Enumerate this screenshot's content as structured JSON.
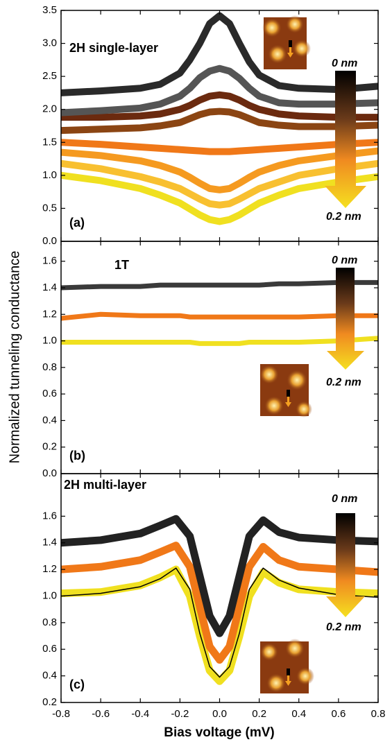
{
  "chart_data": [
    {
      "type": "line",
      "annotations": [
        "2H single-layer",
        "(a)",
        "0 nm",
        "0.2 nm"
      ],
      "x": [
        -0.8,
        -0.6,
        -0.4,
        -0.3,
        -0.2,
        -0.15,
        -0.1,
        -0.05,
        0,
        0.05,
        0.1,
        0.15,
        0.2,
        0.3,
        0.4,
        0.6,
        0.8
      ],
      "xlim": [
        -0.8,
        0.8
      ],
      "ylim": [
        0,
        3.5
      ],
      "yticks": [
        {
          "value": 0,
          "label": "0.0"
        },
        {
          "value": 0.5,
          "label": "0.5"
        },
        {
          "value": 1,
          "label": "1.0"
        },
        {
          "value": 1.5,
          "label": "1.5"
        },
        {
          "value": 2,
          "label": "2.0"
        },
        {
          "value": 2.5,
          "label": "2.5"
        },
        {
          "value": 3,
          "label": "3.0"
        },
        {
          "value": 3.5,
          "label": "3.5"
        }
      ],
      "series": [
        {
          "color": "#f0e020",
          "values": [
            1.0,
            0.92,
            0.8,
            0.7,
            0.58,
            0.49,
            0.4,
            0.33,
            0.3,
            0.33,
            0.4,
            0.49,
            0.58,
            0.7,
            0.8,
            0.9,
            0.98
          ]
        },
        {
          "color": "#f8c030",
          "values": [
            1.18,
            1.1,
            0.98,
            0.9,
            0.8,
            0.72,
            0.64,
            0.57,
            0.55,
            0.57,
            0.64,
            0.72,
            0.8,
            0.9,
            1.0,
            1.1,
            1.18
          ]
        },
        {
          "color": "#f59a20",
          "values": [
            1.35,
            1.3,
            1.22,
            1.15,
            1.05,
            0.97,
            0.88,
            0.8,
            0.78,
            0.8,
            0.88,
            0.97,
            1.05,
            1.15,
            1.22,
            1.3,
            1.37
          ]
        },
        {
          "color": "#f07818",
          "values": [
            1.5,
            1.47,
            1.43,
            1.41,
            1.39,
            1.38,
            1.37,
            1.36,
            1.36,
            1.36,
            1.37,
            1.38,
            1.39,
            1.41,
            1.43,
            1.47,
            1.5
          ]
        },
        {
          "color": "#8b4513",
          "values": [
            1.68,
            1.7,
            1.72,
            1.75,
            1.8,
            1.86,
            1.92,
            1.96,
            1.97,
            1.96,
            1.92,
            1.86,
            1.8,
            1.76,
            1.74,
            1.74,
            1.76
          ]
        },
        {
          "color": "#6b2a0f",
          "values": [
            1.88,
            1.88,
            1.9,
            1.93,
            2.0,
            2.06,
            2.14,
            2.2,
            2.22,
            2.2,
            2.14,
            2.06,
            2.0,
            1.93,
            1.9,
            1.88,
            1.88
          ]
        },
        {
          "color": "#555555",
          "values": [
            1.95,
            1.98,
            2.02,
            2.08,
            2.2,
            2.32,
            2.48,
            2.58,
            2.62,
            2.58,
            2.47,
            2.32,
            2.2,
            2.1,
            2.08,
            2.08,
            2.1
          ]
        },
        {
          "color": "#2a2a2a",
          "values": [
            2.25,
            2.28,
            2.32,
            2.38,
            2.55,
            2.75,
            3.0,
            3.3,
            3.42,
            3.3,
            3.0,
            2.72,
            2.52,
            2.36,
            2.32,
            2.3,
            2.35
          ]
        }
      ]
    },
    {
      "type": "line",
      "annotations": [
        "1T",
        "(b)",
        "0 nm",
        "0.2 nm"
      ],
      "ylabel": "Normalized tunneling conductance",
      "x": [
        -0.8,
        -0.6,
        -0.4,
        -0.3,
        -0.2,
        -0.15,
        -0.1,
        -0.05,
        0,
        0.05,
        0.1,
        0.15,
        0.2,
        0.3,
        0.4,
        0.6,
        0.8
      ],
      "xlim": [
        -0.8,
        0.8
      ],
      "ylim": [
        0,
        1.75
      ],
      "yticks": [
        {
          "value": 0,
          "label": "0.0"
        },
        {
          "value": 0.2,
          "label": "0.2"
        },
        {
          "value": 0.4,
          "label": "0.4"
        },
        {
          "value": 0.6,
          "label": "0.6"
        },
        {
          "value": 0.8,
          "label": "0.8"
        },
        {
          "value": 1,
          "label": "1.0"
        },
        {
          "value": 1.2,
          "label": "1.2"
        },
        {
          "value": 1.4,
          "label": "1.4"
        },
        {
          "value": 1.6,
          "label": "1.6"
        }
      ],
      "series": [
        {
          "color": "#f0e020",
          "values": [
            0.99,
            0.99,
            0.99,
            0.99,
            0.99,
            0.99,
            0.98,
            0.98,
            0.98,
            0.98,
            0.98,
            0.99,
            0.99,
            0.99,
            0.99,
            1.0,
            1.02
          ]
        },
        {
          "color": "#f07818",
          "values": [
            1.17,
            1.2,
            1.19,
            1.19,
            1.19,
            1.18,
            1.18,
            1.18,
            1.18,
            1.18,
            1.18,
            1.18,
            1.18,
            1.18,
            1.18,
            1.19,
            1.19
          ]
        },
        {
          "color": "#3a3a3a",
          "values": [
            1.4,
            1.41,
            1.41,
            1.42,
            1.42,
            1.42,
            1.42,
            1.42,
            1.42,
            1.42,
            1.42,
            1.42,
            1.42,
            1.43,
            1.43,
            1.44,
            1.44
          ]
        }
      ]
    },
    {
      "type": "line",
      "annotations": [
        "2H multi-layer",
        "(c)",
        "0 nm",
        "0.2 nm"
      ],
      "xlabel": "Bias voltage (mV)",
      "x": [
        -0.8,
        -0.6,
        -0.4,
        -0.3,
        -0.22,
        -0.15,
        -0.1,
        -0.05,
        0,
        0.05,
        0.1,
        0.15,
        0.22,
        0.3,
        0.4,
        0.6,
        0.8
      ],
      "xlim": [
        -0.8,
        0.8
      ],
      "xticks": [
        {
          "value": -0.8,
          "label": "-0.8"
        },
        {
          "value": -0.6,
          "label": "-0.6"
        },
        {
          "value": -0.4,
          "label": "-0.4"
        },
        {
          "value": -0.2,
          "label": "-0.2"
        },
        {
          "value": 0,
          "label": "0.0"
        },
        {
          "value": 0.2,
          "label": "0.2"
        },
        {
          "value": 0.4,
          "label": "0.4"
        },
        {
          "value": 0.6,
          "label": "0.6"
        },
        {
          "value": 0.8,
          "label": "0.8"
        }
      ],
      "ylim": [
        0.2,
        1.92
      ],
      "yticks": [
        0.2,
        0.4,
        0.6,
        0.8,
        {
          "value": 1,
          "label": "1.0"
        },
        1.2,
        1.4,
        1.6
      ],
      "series": [
        {
          "color": "#f0e020",
          "values": [
            1.02,
            1.03,
            1.08,
            1.14,
            1.2,
            1.0,
            0.7,
            0.44,
            0.36,
            0.44,
            0.7,
            1.0,
            1.18,
            1.1,
            1.05,
            1.03,
            1.02
          ]
        },
        {
          "color": "#f07818",
          "values": [
            1.2,
            1.22,
            1.27,
            1.33,
            1.38,
            1.22,
            0.92,
            0.62,
            0.52,
            0.62,
            0.92,
            1.22,
            1.37,
            1.27,
            1.22,
            1.2,
            1.18
          ]
        },
        {
          "color": "#222222",
          "values": [
            1.4,
            1.42,
            1.47,
            1.53,
            1.58,
            1.45,
            1.15,
            0.85,
            0.72,
            0.85,
            1.15,
            1.45,
            1.57,
            1.48,
            1.44,
            1.42,
            1.41
          ]
        },
        {
          "color": "#000000",
          "values": [
            1.0,
            1.02,
            1.07,
            1.13,
            1.21,
            1.05,
            0.72,
            0.47,
            0.39,
            0.47,
            0.72,
            1.05,
            1.21,
            1.12,
            1.06,
            1.01,
            0.99
          ]
        }
      ]
    }
  ]
}
